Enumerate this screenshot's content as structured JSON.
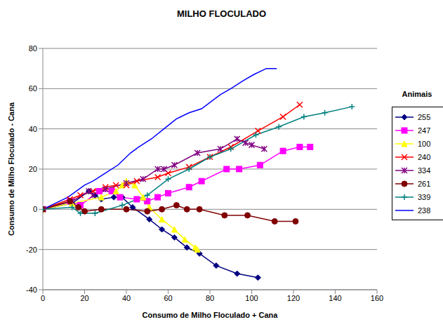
{
  "chart_data": {
    "type": "line",
    "title": "MILHO FLOCULADO",
    "x_label": "Consumo de Milho Floculado + Cana",
    "y_label": "Consumo de Milho Floculado - Cana",
    "legend_title": "Animais",
    "legend": "right",
    "grid": true,
    "xlim": [
      0,
      160
    ],
    "xticks": [
      0,
      20,
      40,
      60,
      80,
      100,
      120,
      140,
      160
    ],
    "ylim": [
      -40,
      80
    ],
    "yticks": [
      -40,
      -20,
      0,
      20,
      40,
      60,
      80
    ],
    "series": [
      {
        "name": "255",
        "color": "#000080",
        "marker": "diamond",
        "x": [
          0,
          14,
          22,
          25,
          28,
          34,
          38,
          43,
          51,
          57,
          63,
          69,
          75,
          83,
          93,
          103
        ],
        "values": [
          0,
          3,
          9,
          7,
          5,
          6,
          6,
          1,
          -5,
          -10,
          -14,
          -19,
          -22,
          -28,
          -32,
          -34
        ]
      },
      {
        "name": "247",
        "color": "#FF00FF",
        "marker": "square",
        "x": [
          0,
          13,
          18,
          27,
          33,
          37,
          45,
          50,
          55,
          60,
          70,
          76,
          88,
          94,
          104,
          115,
          123,
          128
        ],
        "values": [
          0,
          4,
          2,
          9,
          9,
          6,
          5,
          4,
          6,
          8,
          11,
          14,
          20,
          20,
          22,
          29,
          31,
          31
        ]
      },
      {
        "name": "100",
        "color": "#FFFF00",
        "marker": "triangle",
        "x": [
          0,
          14,
          28,
          35,
          38,
          40,
          44,
          48,
          51,
          57,
          63,
          68,
          73,
          74
        ],
        "values": [
          0,
          3,
          6,
          9,
          12,
          14,
          12,
          6,
          1,
          -5,
          -10,
          -15,
          -19,
          -20
        ]
      },
      {
        "name": "240",
        "color": "#FF0000",
        "marker": "x",
        "x": [
          0,
          13,
          18,
          24,
          30,
          35,
          40,
          45,
          55,
          60,
          70,
          80,
          90,
          103,
          115,
          123
        ],
        "values": [
          0,
          5,
          7,
          9,
          11,
          12,
          12,
          14,
          16,
          18,
          21,
          26,
          31,
          39,
          46,
          52
        ]
      },
      {
        "name": "334",
        "color": "#800080",
        "marker": "star",
        "x": [
          0,
          14,
          22,
          24,
          30,
          40,
          48,
          55,
          58,
          63,
          74,
          85,
          93,
          97,
          100,
          106
        ],
        "values": [
          0,
          4,
          9,
          7,
          10,
          13,
          15,
          20,
          20,
          22,
          28,
          30,
          35,
          33,
          32,
          30
        ]
      },
      {
        "name": "261",
        "color": "#800000",
        "marker": "circle",
        "x": [
          0,
          13,
          17,
          20,
          28,
          40,
          50,
          57,
          64,
          69,
          75,
          87,
          98,
          111,
          121
        ],
        "values": [
          0,
          4,
          1,
          -1,
          0,
          0,
          -1,
          0,
          2,
          0,
          0,
          -3,
          -3,
          -6,
          -6
        ]
      },
      {
        "name": "339",
        "color": "#008080",
        "marker": "plus",
        "x": [
          0,
          14,
          18,
          25,
          38,
          50,
          60,
          70,
          80,
          90,
          102,
          113,
          125,
          135,
          148
        ],
        "values": [
          0,
          1,
          -2,
          -2,
          2,
          7,
          15,
          20,
          26,
          30,
          37,
          41,
          46,
          48,
          51
        ]
      },
      {
        "name": "238",
        "color": "#0000FF",
        "marker": "none",
        "x": [
          0,
          12,
          20,
          24,
          30,
          36,
          42,
          46,
          52,
          58,
          64,
          70,
          76,
          85,
          90,
          96,
          101,
          107,
          112
        ],
        "values": [
          0,
          6,
          12,
          14,
          18,
          22,
          28,
          31,
          35,
          40,
          45,
          48,
          50,
          57,
          60,
          64,
          67,
          70,
          70
        ]
      }
    ]
  }
}
